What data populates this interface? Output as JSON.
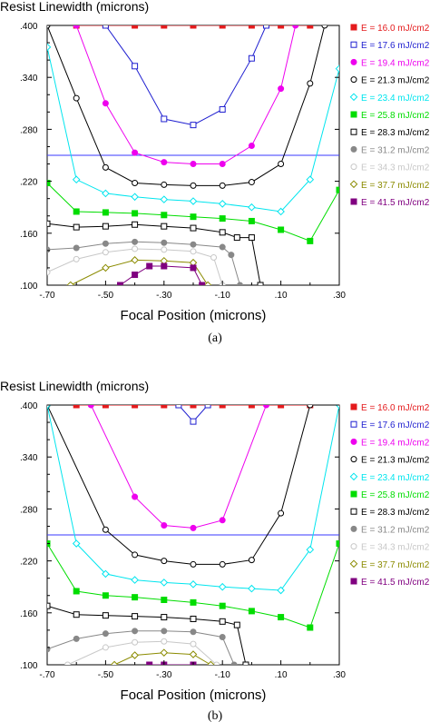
{
  "legend": [
    {
      "label": "E = 16.0 mJ/cm2",
      "color": "#e41a1c",
      "marker": "filled-square"
    },
    {
      "label": "E = 17.6 mJ/cm2",
      "color": "#1f1fd0",
      "marker": "open-square"
    },
    {
      "label": "E = 19.4 mJ/cm2",
      "color": "#ee00ee",
      "marker": "filled-circle"
    },
    {
      "label": "E = 21.3 mJ/cm2",
      "color": "#000000",
      "marker": "open-circle"
    },
    {
      "label": "E = 23.4 mJ/cm2",
      "color": "#00e5ee",
      "marker": "open-diamond"
    },
    {
      "label": "E = 25.8 mJ/cm2",
      "color": "#00dd00",
      "marker": "filled-square"
    },
    {
      "label": "E = 28.3 mJ/cm2",
      "color": "#000000",
      "marker": "open-square"
    },
    {
      "label": "E = 31.2 mJ/cm2",
      "color": "#888888",
      "marker": "filled-circle"
    },
    {
      "label": "E = 34.3 mJ/cm2",
      "color": "#c8c8c8",
      "marker": "open-circle"
    },
    {
      "label": "E = 37.7 mJ/cm2",
      "color": "#8b8b00",
      "marker": "open-diamond"
    },
    {
      "label": "E = 41.5 mJ/cm2",
      "color": "#800080",
      "marker": "filled-square"
    }
  ],
  "chart_data": [
    {
      "type": "line",
      "panel_caption": "(a)",
      "title": "Resist Linewidth (microns)",
      "xlabel": "Focal Position (microns)",
      "xlim": [
        -0.7,
        0.3
      ],
      "ylim": [
        0.1,
        0.4
      ],
      "xticks": [
        "-.70",
        "-.50",
        "-.30",
        "-.10",
        ".10",
        ".30"
      ],
      "yticks": [
        ".100",
        ".160",
        ".220",
        ".280",
        ".340",
        ".400"
      ],
      "reference_line_y": 0.25,
      "series": [
        {
          "name": "E = 16.0 mJ/cm2",
          "x": [
            -0.6,
            -0.5,
            -0.4,
            -0.3,
            -0.2,
            -0.1,
            0.0,
            0.1,
            0.2
          ],
          "y": [
            0.4,
            0.4,
            0.4,
            0.4,
            0.4,
            0.4,
            0.4,
            0.4,
            0.4
          ]
        },
        {
          "name": "E = 17.6 mJ/cm2",
          "x": [
            -0.5,
            -0.4,
            -0.3,
            -0.2,
            -0.1,
            0.0,
            0.05
          ],
          "y": [
            0.4,
            0.353,
            0.292,
            0.285,
            0.303,
            0.362,
            0.4
          ]
        },
        {
          "name": "E = 19.4 mJ/cm2",
          "x": [
            -0.6,
            -0.5,
            -0.4,
            -0.3,
            -0.2,
            -0.1,
            0.0,
            0.1,
            0.15
          ],
          "y": [
            0.4,
            0.31,
            0.253,
            0.242,
            0.24,
            0.24,
            0.261,
            0.327,
            0.4
          ]
        },
        {
          "name": "E = 21.3 mJ/cm2",
          "x": [
            -0.7,
            -0.6,
            -0.5,
            -0.4,
            -0.3,
            -0.2,
            -0.1,
            0.0,
            0.1,
            0.2,
            0.25
          ],
          "y": [
            0.4,
            0.316,
            0.236,
            0.218,
            0.216,
            0.215,
            0.215,
            0.219,
            0.24,
            0.333,
            0.4
          ]
        },
        {
          "name": "E = 23.4 mJ/cm2",
          "x": [
            -0.7,
            -0.6,
            -0.5,
            -0.4,
            -0.3,
            -0.2,
            -0.1,
            0.0,
            0.1,
            0.2,
            0.3
          ],
          "y": [
            0.375,
            0.222,
            0.206,
            0.202,
            0.199,
            0.197,
            0.194,
            0.19,
            0.185,
            0.222,
            0.35
          ]
        },
        {
          "name": "E = 25.8 mJ/cm2",
          "x": [
            -0.7,
            -0.6,
            -0.5,
            -0.4,
            -0.3,
            -0.2,
            -0.1,
            0.0,
            0.1,
            0.2,
            0.3
          ],
          "y": [
            0.218,
            0.185,
            0.184,
            0.183,
            0.181,
            0.179,
            0.177,
            0.174,
            0.164,
            0.151,
            0.21
          ]
        },
        {
          "name": "E = 28.3 mJ/cm2",
          "x": [
            -0.7,
            -0.6,
            -0.5,
            -0.4,
            -0.3,
            -0.2,
            -0.1,
            -0.05,
            0.0,
            0.03
          ],
          "y": [
            0.171,
            0.167,
            0.168,
            0.17,
            0.168,
            0.166,
            0.161,
            0.155,
            0.155,
            0.1
          ]
        },
        {
          "name": "E = 31.2 mJ/cm2",
          "x": [
            -0.7,
            -0.6,
            -0.5,
            -0.4,
            -0.3,
            -0.2,
            -0.1,
            -0.07,
            -0.04
          ],
          "y": [
            0.141,
            0.143,
            0.148,
            0.15,
            0.149,
            0.147,
            0.144,
            0.135,
            0.1
          ]
        },
        {
          "name": "E = 34.3 mJ/cm2",
          "x": [
            -0.7,
            -0.6,
            -0.5,
            -0.4,
            -0.3,
            -0.2,
            -0.13,
            -0.1
          ],
          "y": [
            0.115,
            0.13,
            0.138,
            0.142,
            0.141,
            0.139,
            0.132,
            0.1
          ]
        },
        {
          "name": "E = 37.7 mJ/cm2",
          "x": [
            -0.62,
            -0.5,
            -0.4,
            -0.3,
            -0.2,
            -0.15
          ],
          "y": [
            0.1,
            0.12,
            0.129,
            0.128,
            0.126,
            0.1
          ]
        },
        {
          "name": "E = 41.5 mJ/cm2",
          "x": [
            -0.45,
            -0.4,
            -0.35,
            -0.3,
            -0.2,
            -0.17
          ],
          "y": [
            0.1,
            0.112,
            0.122,
            0.122,
            0.12,
            0.1
          ]
        }
      ]
    },
    {
      "type": "line",
      "panel_caption": "(b)",
      "title": "Resist Linewidth (microns)",
      "xlabel": "Focal Position (microns)",
      "xlim": [
        -0.7,
        0.3
      ],
      "ylim": [
        0.1,
        0.4
      ],
      "xticks": [
        "-.70",
        "-.50",
        "-.30",
        "-.10",
        ".10",
        ".30"
      ],
      "yticks": [
        ".100",
        ".160",
        ".220",
        ".280",
        ".340",
        ".400"
      ],
      "reference_line_y": 0.25,
      "series": [
        {
          "name": "E = 16.0 mJ/cm2",
          "x": [
            -0.6,
            -0.5,
            -0.4,
            -0.3,
            -0.2,
            -0.1,
            0.0,
            0.1,
            0.2
          ],
          "y": [
            0.4,
            0.4,
            0.4,
            0.4,
            0.4,
            0.4,
            0.4,
            0.4,
            0.4
          ]
        },
        {
          "name": "E = 17.6 mJ/cm2",
          "x": [
            -0.25,
            -0.2,
            -0.15
          ],
          "y": [
            0.4,
            0.381,
            0.4
          ]
        },
        {
          "name": "E = 19.4 mJ/cm2",
          "x": [
            -0.55,
            -0.4,
            -0.3,
            -0.2,
            -0.1,
            0.05
          ],
          "y": [
            0.4,
            0.294,
            0.261,
            0.258,
            0.267,
            0.4
          ]
        },
        {
          "name": "E = 21.3 mJ/cm2",
          "x": [
            -0.7,
            -0.5,
            -0.4,
            -0.3,
            -0.2,
            -0.1,
            0.0,
            0.1,
            0.2
          ],
          "y": [
            0.4,
            0.256,
            0.227,
            0.22,
            0.216,
            0.216,
            0.221,
            0.275,
            0.4
          ]
        },
        {
          "name": "E = 23.4 mJ/cm2",
          "x": [
            -0.7,
            -0.6,
            -0.5,
            -0.4,
            -0.3,
            -0.2,
            -0.1,
            0.0,
            0.1,
            0.2,
            0.3
          ],
          "y": [
            0.4,
            0.24,
            0.205,
            0.198,
            0.195,
            0.193,
            0.19,
            0.188,
            0.186,
            0.233,
            0.4
          ]
        },
        {
          "name": "E = 25.8 mJ/cm2",
          "x": [
            -0.7,
            -0.6,
            -0.5,
            -0.4,
            -0.3,
            -0.2,
            -0.1,
            0.0,
            0.1,
            0.2,
            0.3
          ],
          "y": [
            0.24,
            0.185,
            0.18,
            0.178,
            0.175,
            0.172,
            0.168,
            0.162,
            0.155,
            0.143,
            0.24
          ]
        },
        {
          "name": "E = 28.3 mJ/cm2",
          "x": [
            -0.7,
            -0.6,
            -0.5,
            -0.4,
            -0.3,
            -0.2,
            -0.1,
            -0.05,
            -0.02
          ],
          "y": [
            0.168,
            0.158,
            0.157,
            0.156,
            0.155,
            0.153,
            0.15,
            0.146,
            0.1
          ]
        },
        {
          "name": "E = 31.2 mJ/cm2",
          "x": [
            -0.7,
            -0.6,
            -0.5,
            -0.4,
            -0.3,
            -0.2,
            -0.1,
            -0.06
          ],
          "y": [
            0.118,
            0.13,
            0.136,
            0.139,
            0.139,
            0.138,
            0.132,
            0.1
          ]
        },
        {
          "name": "E = 34.3 mJ/cm2",
          "x": [
            -0.63,
            -0.5,
            -0.4,
            -0.3,
            -0.2,
            -0.12
          ],
          "y": [
            0.1,
            0.12,
            0.126,
            0.127,
            0.124,
            0.1
          ]
        },
        {
          "name": "E = 37.7 mJ/cm2",
          "x": [
            -0.47,
            -0.4,
            -0.3,
            -0.2,
            -0.14
          ],
          "y": [
            0.1,
            0.111,
            0.114,
            0.112,
            0.1
          ]
        },
        {
          "name": "E = 41.5 mJ/cm2",
          "x": [
            -0.35,
            -0.3,
            -0.2
          ],
          "y": [
            0.1,
            0.1,
            0.1
          ]
        }
      ]
    }
  ]
}
